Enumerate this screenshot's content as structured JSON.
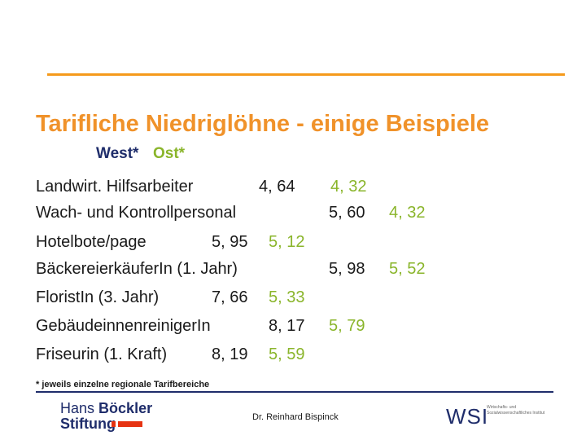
{
  "title": "Tarifliche Niedriglöhne - einige Beispiele",
  "header": {
    "west": "West*",
    "ost": "Ost*"
  },
  "lines": [
    {
      "label": "Landwirt. Hilfsarbeiter",
      "west": "4, 64",
      "ost": "4, 32"
    },
    {
      "label": "Wach- und Kontrollpersonal",
      "west": "5, 60",
      "ost": "4, 32"
    },
    {
      "label": "Hotelbote/page",
      "west": "5, 95",
      "ost": "5, 12"
    },
    {
      "label": "BäckereierkäuferIn (1. Jahr)",
      "west": "5, 98",
      "ost": "5, 52"
    },
    {
      "label": "FloristIn (3. Jahr)",
      "west": "7, 66",
      "ost": "5, 33"
    },
    {
      "label": "GebäudeinnenreinigerIn",
      "west": "8, 17",
      "ost": "5, 79"
    },
    {
      "label": "Friseurin (1. Kraft)",
      "west": "8, 19",
      "ost": "5, 59"
    }
  ],
  "footnote": "* jeweils einzelne regionale Tarifbereiche",
  "footer": {
    "logo_line1_a": "Hans",
    "logo_line1_b": "Böckler",
    "logo_line2": "Stiftung",
    "author": "Dr. Reinhard Bispinck",
    "wsi": "WSI",
    "wsi_sub": "Wirtschafts- und Sozialwissenschaftliches Institut"
  },
  "colors": {
    "title": "#f0922a",
    "ost": "#8ab52b",
    "west": "#1f2d6b",
    "rule": "#f59a1b"
  }
}
